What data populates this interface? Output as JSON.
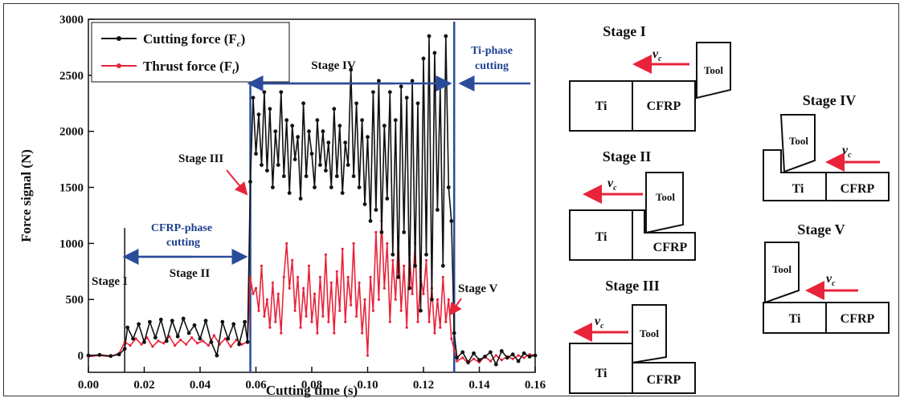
{
  "chart_data": {
    "type": "line",
    "xlabel": "Cutting time (s)",
    "ylabel": "Force signal (N)",
    "xlim": [
      0.0,
      0.16
    ],
    "ylim": [
      -150,
      3000
    ],
    "x_ticks": [
      "0.00",
      "0.02",
      "0.04",
      "0.06",
      "0.08",
      "0.10",
      "0.12",
      "0.14",
      "0.16"
    ],
    "y_ticks": [
      "0",
      "500",
      "1000",
      "1500",
      "2000",
      "2500",
      "3000"
    ],
    "legend": {
      "placement": "top-left",
      "cutting_label": "Cutting force (F",
      "cutting_sub": "c",
      "thrust_label": "Thrust force (F",
      "thrust_sub": "t"
    },
    "series": [
      {
        "name": "Cutting force (Fc)",
        "color": "#111111",
        "points": [
          [
            0.0,
            0
          ],
          [
            0.004,
            5
          ],
          [
            0.008,
            -5
          ],
          [
            0.011,
            10
          ],
          [
            0.013,
            60
          ],
          [
            0.014,
            250
          ],
          [
            0.016,
            150
          ],
          [
            0.018,
            280
          ],
          [
            0.02,
            120
          ],
          [
            0.022,
            300
          ],
          [
            0.024,
            160
          ],
          [
            0.026,
            320
          ],
          [
            0.028,
            130
          ],
          [
            0.03,
            310
          ],
          [
            0.032,
            170
          ],
          [
            0.034,
            330
          ],
          [
            0.036,
            200
          ],
          [
            0.038,
            270
          ],
          [
            0.04,
            150
          ],
          [
            0.042,
            310
          ],
          [
            0.044,
            120
          ],
          [
            0.046,
            0
          ],
          [
            0.048,
            300
          ],
          [
            0.05,
            150
          ],
          [
            0.052,
            280
          ],
          [
            0.054,
            100
          ],
          [
            0.056,
            300
          ],
          [
            0.057,
            120
          ],
          [
            0.058,
            1550
          ],
          [
            0.059,
            2300
          ],
          [
            0.06,
            1800
          ],
          [
            0.061,
            2150
          ],
          [
            0.062,
            1700
          ],
          [
            0.063,
            2350
          ],
          [
            0.064,
            1650
          ],
          [
            0.065,
            2200
          ],
          [
            0.066,
            1500
          ],
          [
            0.067,
            2000
          ],
          [
            0.068,
            1700
          ],
          [
            0.069,
            2350
          ],
          [
            0.07,
            1600
          ],
          [
            0.071,
            2100
          ],
          [
            0.072,
            1450
          ],
          [
            0.073,
            2050
          ],
          [
            0.074,
            1750
          ],
          [
            0.075,
            1950
          ],
          [
            0.076,
            1400
          ],
          [
            0.077,
            2250
          ],
          [
            0.078,
            1600
          ],
          [
            0.079,
            2000
          ],
          [
            0.08,
            1800
          ],
          [
            0.081,
            1500
          ],
          [
            0.082,
            2100
          ],
          [
            0.083,
            1700
          ],
          [
            0.084,
            2000
          ],
          [
            0.085,
            1650
          ],
          [
            0.086,
            1900
          ],
          [
            0.087,
            1500
          ],
          [
            0.088,
            2200
          ],
          [
            0.089,
            1600
          ],
          [
            0.09,
            2050
          ],
          [
            0.091,
            1450
          ],
          [
            0.092,
            1900
          ],
          [
            0.093,
            1700
          ],
          [
            0.094,
            2550
          ],
          [
            0.095,
            1600
          ],
          [
            0.096,
            2250
          ],
          [
            0.097,
            1500
          ],
          [
            0.098,
            2100
          ],
          [
            0.099,
            1350
          ],
          [
            0.1,
            1950
          ],
          [
            0.101,
            1200
          ],
          [
            0.102,
            2350
          ],
          [
            0.103,
            1300
          ],
          [
            0.104,
            2450
          ],
          [
            0.105,
            1100
          ],
          [
            0.106,
            2050
          ],
          [
            0.107,
            1400
          ],
          [
            0.108,
            2350
          ],
          [
            0.109,
            900
          ],
          [
            0.11,
            2100
          ],
          [
            0.111,
            700
          ],
          [
            0.112,
            2400
          ],
          [
            0.113,
            1100
          ],
          [
            0.114,
            2300
          ],
          [
            0.115,
            600
          ],
          [
            0.116,
            2450
          ],
          [
            0.117,
            800
          ],
          [
            0.118,
            2250
          ],
          [
            0.119,
            400
          ],
          [
            0.12,
            2650
          ],
          [
            0.121,
            900
          ],
          [
            0.122,
            2850
          ],
          [
            0.123,
            500
          ],
          [
            0.124,
            2700
          ],
          [
            0.125,
            1300
          ],
          [
            0.126,
            2400
          ],
          [
            0.127,
            800
          ],
          [
            0.128,
            2850
          ],
          [
            0.129,
            1500
          ],
          [
            0.13,
            1200
          ],
          [
            0.131,
            200
          ],
          [
            0.132,
            -20
          ],
          [
            0.134,
            30
          ],
          [
            0.136,
            -60
          ],
          [
            0.138,
            20
          ],
          [
            0.14,
            -40
          ],
          [
            0.142,
            -10
          ],
          [
            0.144,
            30
          ],
          [
            0.146,
            -80
          ],
          [
            0.148,
            40
          ],
          [
            0.15,
            -20
          ],
          [
            0.152,
            10
          ],
          [
            0.154,
            -50
          ],
          [
            0.156,
            20
          ],
          [
            0.158,
            -10
          ],
          [
            0.16,
            0
          ]
        ]
      },
      {
        "name": "Thrust force (Ft)",
        "color": "#e8233a",
        "points": [
          [
            0.0,
            -10
          ],
          [
            0.004,
            0
          ],
          [
            0.008,
            -10
          ],
          [
            0.011,
            20
          ],
          [
            0.013,
            120
          ],
          [
            0.015,
            90
          ],
          [
            0.017,
            150
          ],
          [
            0.019,
            100
          ],
          [
            0.021,
            160
          ],
          [
            0.023,
            80
          ],
          [
            0.025,
            130
          ],
          [
            0.027,
            110
          ],
          [
            0.029,
            170
          ],
          [
            0.031,
            90
          ],
          [
            0.033,
            140
          ],
          [
            0.035,
            100
          ],
          [
            0.037,
            160
          ],
          [
            0.039,
            110
          ],
          [
            0.041,
            130
          ],
          [
            0.043,
            90
          ],
          [
            0.045,
            180
          ],
          [
            0.047,
            100
          ],
          [
            0.049,
            150
          ],
          [
            0.051,
            80
          ],
          [
            0.053,
            140
          ],
          [
            0.055,
            100
          ],
          [
            0.057,
            120
          ],
          [
            0.058,
            700
          ],
          [
            0.059,
            550
          ],
          [
            0.06,
            600
          ],
          [
            0.061,
            400
          ],
          [
            0.062,
            800
          ],
          [
            0.063,
            350
          ],
          [
            0.064,
            500
          ],
          [
            0.065,
            250
          ],
          [
            0.066,
            650
          ],
          [
            0.067,
            300
          ],
          [
            0.068,
            550
          ],
          [
            0.069,
            200
          ],
          [
            0.07,
            700
          ],
          [
            0.071,
            1000
          ],
          [
            0.072,
            600
          ],
          [
            0.073,
            850
          ],
          [
            0.074,
            400
          ],
          [
            0.075,
            700
          ],
          [
            0.076,
            250
          ],
          [
            0.077,
            600
          ],
          [
            0.078,
            350
          ],
          [
            0.079,
            800
          ],
          [
            0.08,
            300
          ],
          [
            0.081,
            550
          ],
          [
            0.082,
            200
          ],
          [
            0.083,
            700
          ],
          [
            0.084,
            350
          ],
          [
            0.085,
            900
          ],
          [
            0.086,
            300
          ],
          [
            0.087,
            650
          ],
          [
            0.088,
            200
          ],
          [
            0.089,
            750
          ],
          [
            0.09,
            400
          ],
          [
            0.091,
            950
          ],
          [
            0.092,
            300
          ],
          [
            0.093,
            700
          ],
          [
            0.094,
            450
          ],
          [
            0.095,
            1000
          ],
          [
            0.096,
            350
          ],
          [
            0.097,
            650
          ],
          [
            0.098,
            200
          ],
          [
            0.099,
            500
          ],
          [
            0.1,
            0
          ],
          [
            0.101,
            700
          ],
          [
            0.102,
            400
          ],
          [
            0.103,
            1100
          ],
          [
            0.104,
            500
          ],
          [
            0.105,
            1200
          ],
          [
            0.106,
            600
          ],
          [
            0.107,
            1000
          ],
          [
            0.108,
            300
          ],
          [
            0.109,
            850
          ],
          [
            0.11,
            500
          ],
          [
            0.111,
            1050
          ],
          [
            0.112,
            400
          ],
          [
            0.113,
            800
          ],
          [
            0.114,
            250
          ],
          [
            0.115,
            900
          ],
          [
            0.116,
            550
          ],
          [
            0.117,
            1000
          ],
          [
            0.118,
            300
          ],
          [
            0.119,
            700
          ],
          [
            0.12,
            550
          ],
          [
            0.121,
            850
          ],
          [
            0.122,
            300
          ],
          [
            0.123,
            600
          ],
          [
            0.124,
            200
          ],
          [
            0.125,
            500
          ],
          [
            0.126,
            250
          ],
          [
            0.127,
            700
          ],
          [
            0.128,
            300
          ],
          [
            0.129,
            500
          ],
          [
            0.13,
            150
          ],
          [
            0.131,
            50
          ],
          [
            0.132,
            -50
          ],
          [
            0.134,
            -20
          ],
          [
            0.136,
            -70
          ],
          [
            0.138,
            -30
          ],
          [
            0.14,
            -60
          ],
          [
            0.142,
            -10
          ],
          [
            0.144,
            -50
          ],
          [
            0.146,
            0
          ],
          [
            0.148,
            -40
          ],
          [
            0.15,
            -10
          ],
          [
            0.152,
            -30
          ],
          [
            0.154,
            0
          ],
          [
            0.156,
            -20
          ],
          [
            0.158,
            10
          ],
          [
            0.16,
            0
          ]
        ]
      }
    ],
    "annotations": {
      "stage1": "Stage I",
      "stage2": "Stage II",
      "stage3": "Stage III",
      "stage4": "Stage IV",
      "stage5": "Stage V",
      "cfrp_line1": "CFRP-phase",
      "cfrp_line2": "cutting",
      "ti_line1": "Ti-phase",
      "ti_line2": "cutting"
    },
    "guide_lines_x": [
      0.013,
      0.058,
      0.131
    ],
    "phase_spans": [
      [
        0.013,
        0.058
      ],
      [
        0.058,
        0.131
      ]
    ]
  },
  "diagram": {
    "stages": [
      {
        "title": "Stage I",
        "left": "Ti",
        "right": "CFRP",
        "tool": "Tool",
        "vc": "v",
        "vc_sub": "c"
      },
      {
        "title": "Stage II",
        "left": "Ti",
        "right": "CFRP",
        "tool": "Tool",
        "vc": "v",
        "vc_sub": "c"
      },
      {
        "title": "Stage III",
        "left": "Ti",
        "right": "CFRP",
        "tool": "Tool",
        "vc": "v",
        "vc_sub": "c"
      },
      {
        "title": "Stage IV",
        "left": "Ti",
        "right": "CFRP",
        "tool": "Tool",
        "vc": "v",
        "vc_sub": "c"
      },
      {
        "title": "Stage V",
        "left": "Ti",
        "right": "CFRP",
        "tool": "Tool",
        "vc": "v",
        "vc_sub": "c"
      }
    ]
  },
  "colors": {
    "cutting": "#111111",
    "thrust": "#e8233a",
    "phase_arrow": "#2b4c9b",
    "annotation_arrow": "#e8233a"
  }
}
